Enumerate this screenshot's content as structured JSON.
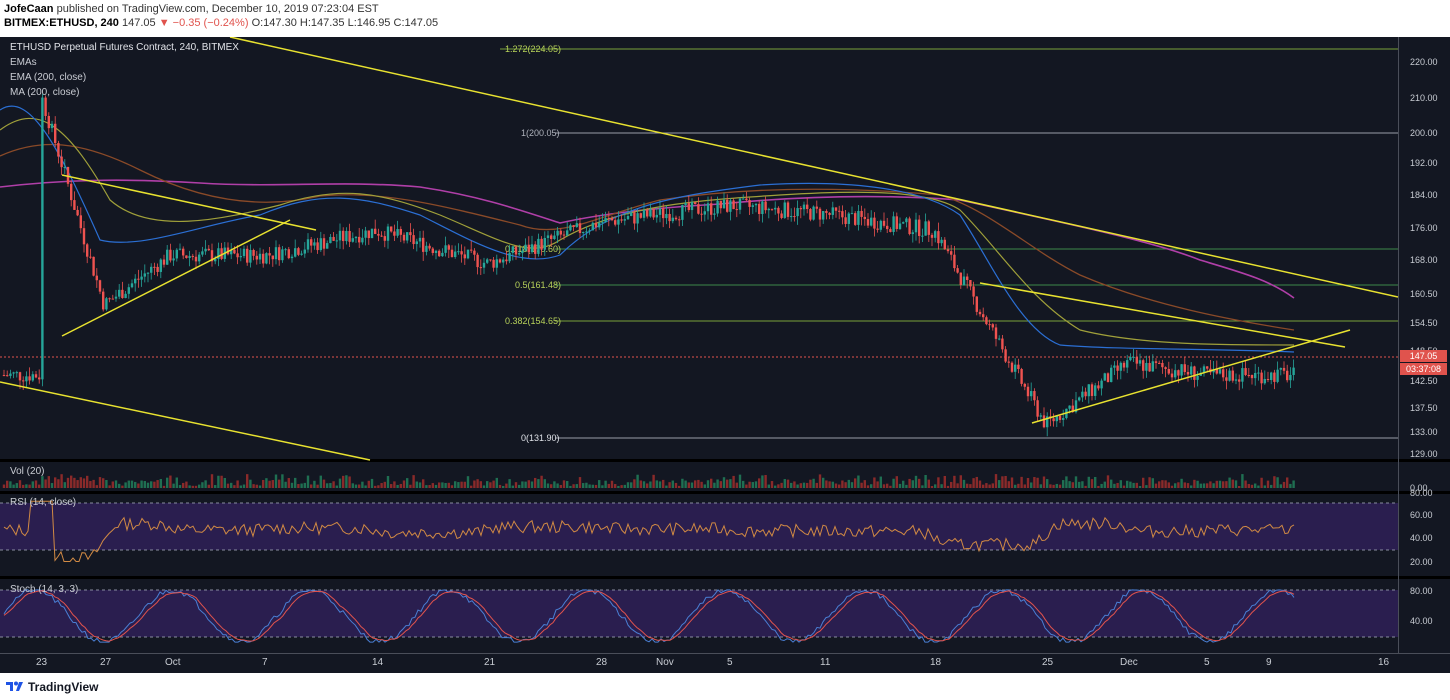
{
  "header": {
    "publisher": "JofeCaan",
    "published_on": "published on TradingView.com, December 10, 2019 07:23:04 EST",
    "symbol": "BITMEX:ETHUSD, 240",
    "last": "147.05",
    "change": "−0.35 (−0.24%)",
    "open": "O:147.30",
    "high": "H:147.35",
    "low": "L:146.95",
    "close": "C:147.05"
  },
  "main_pane": {
    "title": "ETHUSD Perpetual Futures Contract, 240, BITMEX",
    "legend": [
      "EMAs",
      "EMA (200, close)",
      "MA (200, close)"
    ],
    "fib_levels": [
      {
        "label": "1.272(224.05)",
        "value": 224.05
      },
      {
        "label": "1(200.05)",
        "value": 200.05
      },
      {
        "label": "0.618(170.60)",
        "value": 170.6
      },
      {
        "label": "0.5(161.48)",
        "value": 161.48
      },
      {
        "label": "0.382(154.65)",
        "value": 154.65
      },
      {
        "label": "0(131.90)",
        "value": 131.9
      }
    ],
    "price_ticks": [
      "220.00",
      "210.00",
      "200.00",
      "192.00",
      "184.00",
      "176.00",
      "168.00",
      "160.50",
      "154.50",
      "148.50",
      "142.50",
      "137.50",
      "133.00",
      "129.00"
    ],
    "last_price_badge": "147.05",
    "countdown_badge": "03:37:08"
  },
  "volume_pane": {
    "title": "Vol (20)",
    "axis_label": "0.00"
  },
  "rsi_pane": {
    "title": "RSI (14, close)",
    "ticks": [
      "80.00",
      "60.00",
      "40.00",
      "20.00"
    ]
  },
  "stoch_pane": {
    "title": "Stoch (14, 3, 3)",
    "ticks": [
      "80.00",
      "40.00"
    ]
  },
  "time_axis": [
    "23",
    "27",
    "Oct",
    "7",
    "14",
    "21",
    "28",
    "Nov",
    "5",
    "11",
    "18",
    "25",
    "Dec",
    "5",
    "9",
    "16"
  ],
  "footer": {
    "brand": "TradingView"
  },
  "chart_data": {
    "type": "candlestick",
    "title": "ETHUSD Perpetual Futures Contract, 240, BITMEX",
    "x": [
      "23",
      "27",
      "Oct",
      "7",
      "14",
      "21",
      "28",
      "Nov",
      "5",
      "11",
      "18",
      "25",
      "Dec",
      "5",
      "9",
      "16"
    ],
    "ylim": [
      127,
      228
    ],
    "close_path": [
      {
        "x": "23",
        "y": 214
      },
      {
        "x": "27",
        "y": 164
      },
      {
        "x": "Oct",
        "y": 176
      },
      {
        "x": "7",
        "y": 176
      },
      {
        "x": "14",
        "y": 182
      },
      {
        "x": "21",
        "y": 174
      },
      {
        "x": "28",
        "y": 184
      },
      {
        "x": "Nov",
        "y": 186
      },
      {
        "x": "5",
        "y": 188
      },
      {
        "x": "11",
        "y": 186
      },
      {
        "x": "18",
        "y": 182
      },
      {
        "x": "25",
        "y": 135
      },
      {
        "x": "Dec",
        "y": 150
      },
      {
        "x": "5",
        "y": 147
      },
      {
        "x": "9",
        "y": 147.05
      }
    ],
    "colors": {
      "up": "#26a69a",
      "down": "#ef5350",
      "trendline": "#e8e230",
      "fib": "#7aa23a",
      "ma200": "#b03fa8",
      "rsi": "#d18a44",
      "stoch_k": "#4a7fd4",
      "stoch_d": "#e0534d",
      "band": "#2a1e4f"
    }
  }
}
